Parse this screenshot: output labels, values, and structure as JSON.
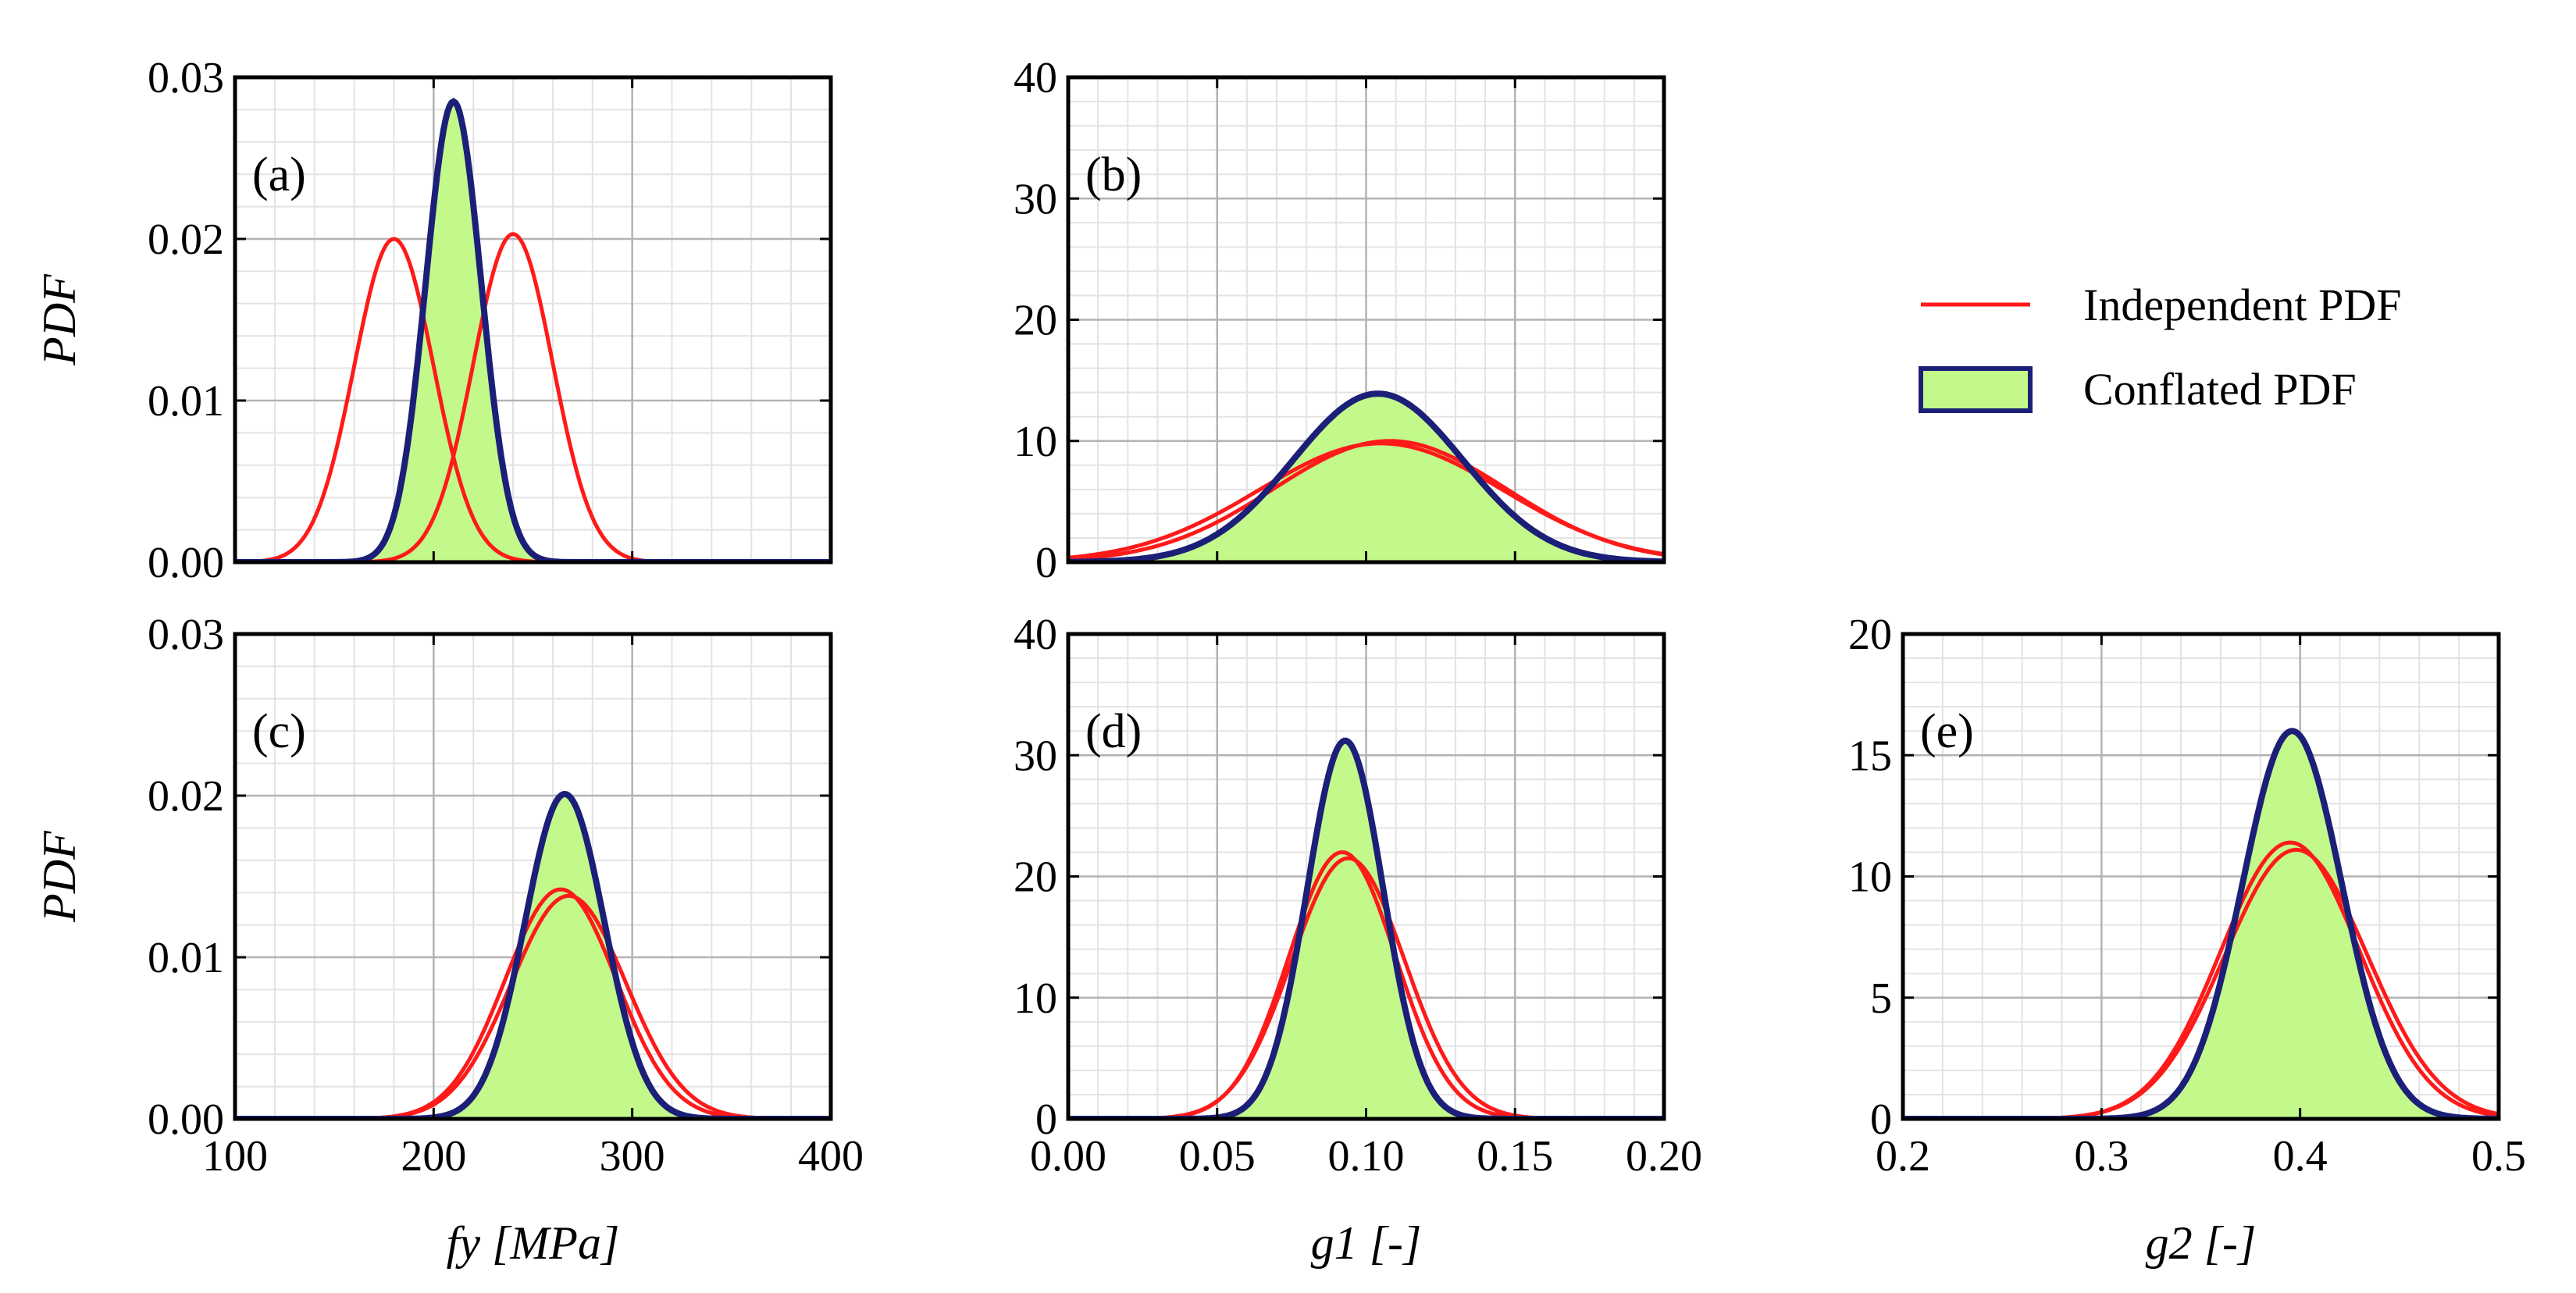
{
  "colors": {
    "independent": "#ff1a1a",
    "conflated_line": "#1c1f78",
    "conflated_fill": "#c2f98a",
    "grid_major": "#b3b3b3",
    "grid_minor": "#e3e3e3"
  },
  "legend": {
    "independent_label": "Independent PDF",
    "conflated_label": "Conflated PDF"
  },
  "chart_data": [
    {
      "id": "a",
      "type": "line",
      "panel_label": "(a)",
      "xlabel": "",
      "ylabel": "PDF",
      "xlim": [
        100,
        400
      ],
      "ylim": [
        0,
        0.03
      ],
      "xticks": [
        100,
        200,
        300,
        400
      ],
      "xtick_labels": [],
      "yticks": [
        0,
        0.01,
        0.02,
        0.03
      ],
      "ytick_labels": [
        "0.00",
        "0.01",
        "0.02",
        "0.03"
      ],
      "independent": [
        {
          "mean": 180,
          "sd": 20,
          "peak": 0.02
        },
        {
          "mean": 240,
          "sd": 20,
          "peak": 0.0203
        }
      ],
      "conflated": {
        "mean": 210,
        "sd": 14,
        "peak": 0.0285
      }
    },
    {
      "id": "b",
      "type": "line",
      "panel_label": "(b)",
      "xlabel": "",
      "ylabel": "",
      "xlim": [
        0,
        0.2
      ],
      "ylim": [
        0,
        40
      ],
      "xticks": [
        0,
        0.05,
        0.1,
        0.15,
        0.2
      ],
      "xtick_labels": [],
      "yticks": [
        0,
        10,
        20,
        30,
        40
      ],
      "ytick_labels": [
        "0",
        "10",
        "20",
        "30",
        "40"
      ],
      "independent": [
        {
          "mean": 0.105,
          "sd": 0.041,
          "peak": 9.8
        },
        {
          "mean": 0.108,
          "sd": 0.039,
          "peak": 10.0
        }
      ],
      "conflated": {
        "mean": 0.104,
        "sd": 0.0285,
        "peak": 13.9
      }
    },
    {
      "id": "c",
      "type": "line",
      "panel_label": "(c)",
      "xlabel": "fy [MPa]",
      "ylabel": "PDF",
      "xlim": [
        100,
        400
      ],
      "ylim": [
        0,
        0.03
      ],
      "xticks": [
        100,
        200,
        300,
        400
      ],
      "xtick_labels": [
        "100",
        "200",
        "300",
        "400"
      ],
      "yticks": [
        0,
        0.01,
        0.02,
        0.03
      ],
      "ytick_labels": [
        "0.00",
        "0.01",
        "0.02",
        "0.03"
      ],
      "independent": [
        {
          "mean": 264,
          "sd": 28,
          "peak": 0.0142
        },
        {
          "mean": 268,
          "sd": 29,
          "peak": 0.0138
        }
      ],
      "conflated": {
        "mean": 266,
        "sd": 20,
        "peak": 0.0201
      }
    },
    {
      "id": "d",
      "type": "line",
      "panel_label": "(d)",
      "xlabel": "g1 [-]",
      "ylabel": "",
      "xlim": [
        0,
        0.2
      ],
      "ylim": [
        0,
        40
      ],
      "xticks": [
        0,
        0.05,
        0.1,
        0.15,
        0.2
      ],
      "xtick_labels": [
        "0.00",
        "0.05",
        "0.10",
        "0.15",
        "0.20"
      ],
      "yticks": [
        0,
        10,
        20,
        30,
        40
      ],
      "ytick_labels": [
        "0",
        "10",
        "20",
        "30",
        "40"
      ],
      "independent": [
        {
          "mean": 0.092,
          "sd": 0.018,
          "peak": 22.0
        },
        {
          "mean": 0.094,
          "sd": 0.019,
          "peak": 21.5
        }
      ],
      "conflated": {
        "mean": 0.093,
        "sd": 0.0128,
        "peak": 31.2
      }
    },
    {
      "id": "e",
      "type": "line",
      "panel_label": "(e)",
      "xlabel": "g2 [-]",
      "ylabel": "",
      "xlim": [
        0.2,
        0.5
      ],
      "ylim": [
        0,
        20
      ],
      "xticks": [
        0.2,
        0.3,
        0.4,
        0.5
      ],
      "xtick_labels": [
        "0.2",
        "0.3",
        "0.4",
        "0.5"
      ],
      "yticks": [
        0,
        5,
        10,
        15,
        20
      ],
      "ytick_labels": [
        "0",
        "5",
        "10",
        "15",
        "20"
      ],
      "independent": [
        {
          "mean": 0.395,
          "sd": 0.035,
          "peak": 11.4
        },
        {
          "mean": 0.398,
          "sd": 0.036,
          "peak": 11.1
        }
      ],
      "conflated": {
        "mean": 0.396,
        "sd": 0.025,
        "peak": 16.0
      }
    }
  ]
}
